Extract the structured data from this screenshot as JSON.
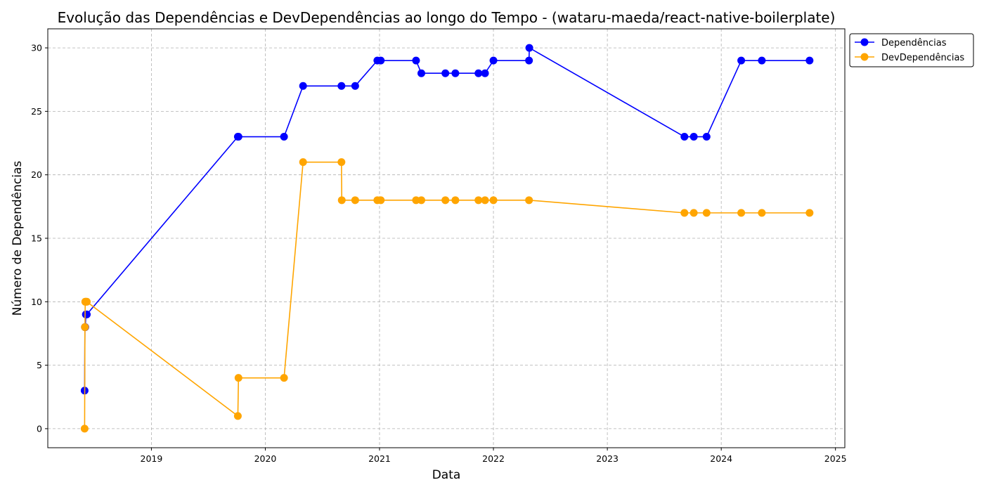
{
  "chart_data": {
    "type": "line",
    "title": "Evolução das Dependências e DevDependências ao longo do Tempo - (wataru-maeda/react-native-boilerplate)",
    "xlabel": "Data",
    "ylabel": "Número de Dependências",
    "xlim": [
      "2018-02-03",
      "2025-01-31"
    ],
    "ylim": [
      -1.5,
      31.5
    ],
    "xticks": [
      "2019",
      "2020",
      "2021",
      "2022",
      "2023",
      "2024",
      "2025"
    ],
    "yticks": [
      0,
      5,
      10,
      15,
      20,
      25,
      30
    ],
    "grid": true,
    "legend_position": "outside-top-right",
    "series": [
      {
        "name": "Dependências",
        "color": "#0000ff",
        "marker": "circle",
        "x": [
          "2018-06-01",
          "2018-06-02",
          "2018-06-03",
          "2018-06-05",
          "2018-06-08",
          "2019-10-05",
          "2019-10-07",
          "2020-03-01",
          "2020-05-01",
          "2020-09-01",
          "2020-10-15",
          "2020-12-25",
          "2021-01-05",
          "2021-04-28",
          "2021-05-15",
          "2021-07-31",
          "2021-09-01",
          "2021-11-14",
          "2021-12-05",
          "2022-01-01",
          "2022-04-25",
          "2022-04-26",
          "2023-09-05",
          "2023-10-05",
          "2023-11-15",
          "2024-03-05",
          "2024-05-10",
          "2024-10-10"
        ],
        "y": [
          3,
          8,
          8,
          9,
          9,
          23,
          23,
          23,
          27,
          27,
          27,
          29,
          29,
          29,
          28,
          28,
          28,
          28,
          28,
          29,
          29,
          30,
          23,
          23,
          23,
          29,
          29,
          29
        ]
      },
      {
        "name": "DevDependências",
        "color": "#ffa500",
        "marker": "circle",
        "x": [
          "2018-06-01",
          "2018-06-02",
          "2018-06-03",
          "2018-06-05",
          "2018-06-08",
          "2019-10-05",
          "2019-10-07",
          "2020-03-01",
          "2020-05-01",
          "2020-09-01",
          "2020-09-02",
          "2020-10-15",
          "2020-12-25",
          "2021-01-05",
          "2021-04-28",
          "2021-05-15",
          "2021-07-31",
          "2021-09-01",
          "2021-11-14",
          "2021-12-05",
          "2022-01-01",
          "2022-04-25",
          "2023-09-05",
          "2023-10-05",
          "2023-11-15",
          "2024-03-05",
          "2024-05-10",
          "2024-10-10"
        ],
        "y": [
          0,
          8,
          10,
          10,
          10,
          1,
          4,
          4,
          21,
          21,
          18,
          18,
          18,
          18,
          18,
          18,
          18,
          18,
          18,
          18,
          18,
          18,
          17,
          17,
          17,
          17,
          17,
          17
        ]
      }
    ]
  }
}
